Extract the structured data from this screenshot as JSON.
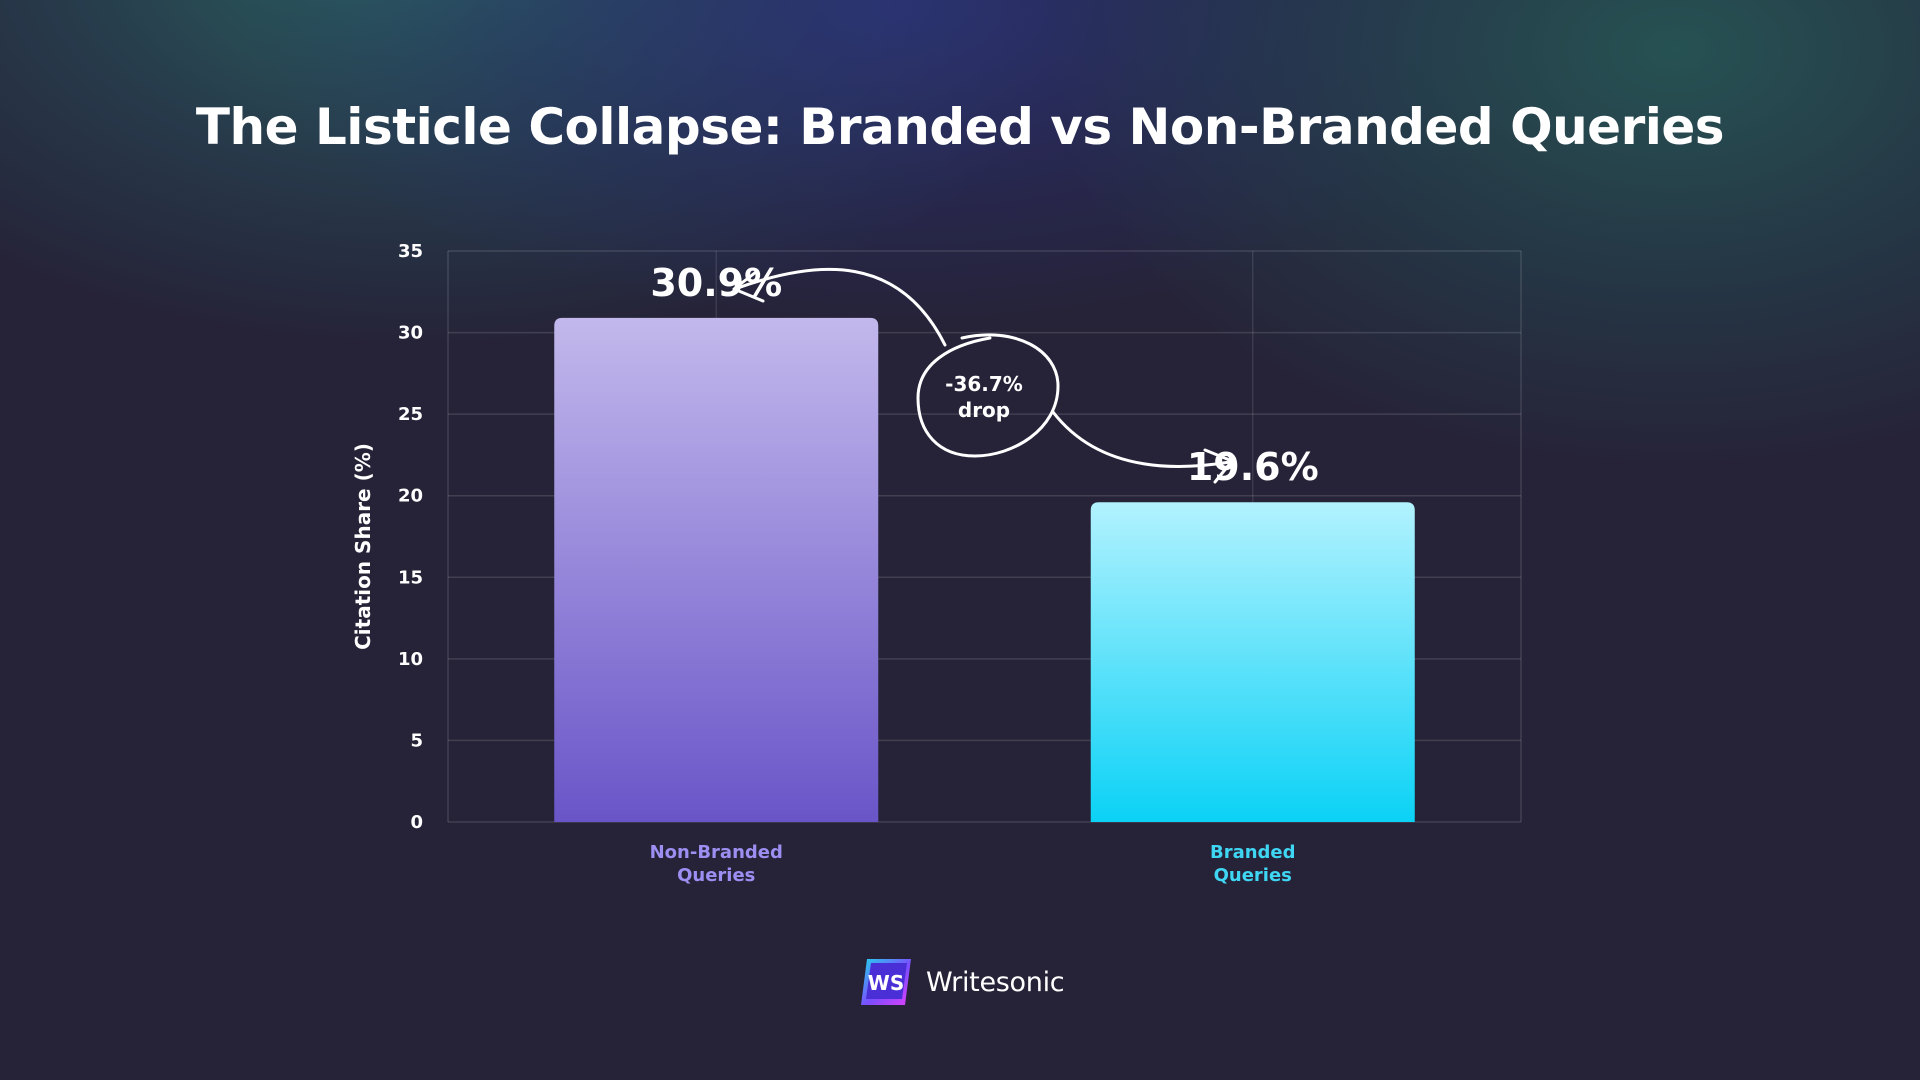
{
  "title": "The Listicle Collapse: Branded vs Non-Branded Queries",
  "brand": {
    "logo_text": "WS",
    "name": "Writesonic"
  },
  "annotation": {
    "percent": "-36.7%",
    "word": "drop"
  },
  "colors": {
    "background": "#262338",
    "non_branded_top": "#c3b8ec",
    "non_branded_bottom": "#6a55c8",
    "branded_top": "#b2f2fe",
    "branded_bottom": "#0bd2f6",
    "non_branded_label": "#9d8ef2",
    "branded_label": "#3fd6f4"
  },
  "chart_data": {
    "type": "bar",
    "title": "The Listicle Collapse: Branded vs Non-Branded Queries",
    "xlabel": "",
    "ylabel": "Citation Share (%)",
    "ylim": [
      0,
      35
    ],
    "yticks": [
      0,
      5,
      10,
      15,
      20,
      25,
      30,
      35
    ],
    "grid": true,
    "categories": [
      [
        "Non-Branded",
        "Queries"
      ],
      [
        "Branded",
        "Queries"
      ]
    ],
    "values": [
      30.9,
      19.6
    ],
    "data_labels": [
      "30.9%",
      "19.6%"
    ]
  }
}
